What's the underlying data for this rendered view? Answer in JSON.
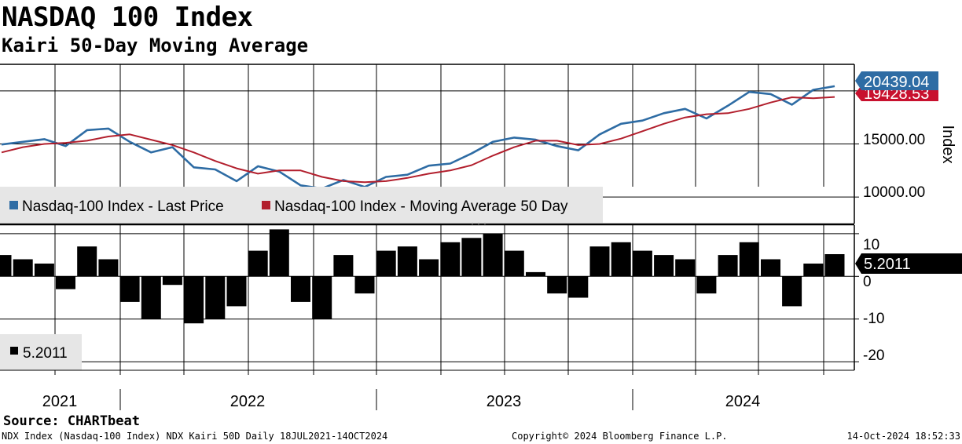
{
  "title": "NASDAQ 100 Index",
  "subtitle": "Kairi 50-Day Moving Average",
  "source": "Source: CHARTbeat",
  "footer": {
    "left": "NDX Index (Nasdaq-100 Index) NDX Kairi 50D  Daily 18JUL2021-14OCT2024",
    "center": "Copyright© 2024 Bloomberg Finance L.P.",
    "right": "14-Oct-2024 18:52:33"
  },
  "colors": {
    "last_price": "#2e6ca4",
    "moving_average": "#b21f2d",
    "kairi": "#000000",
    "flag_last_price": "#2e6ca4",
    "flag_moving_average": "#c8102e",
    "flag_kairi": "#000000"
  },
  "chart_data": [
    {
      "type": "line",
      "ylabel": "Index",
      "ylim": [
        7500,
        22500
      ],
      "yticks": [
        "15000.00",
        "10000.00"
      ],
      "legend": [
        "Nasdaq-100 Index - Last Price",
        "Nasdaq-100 Index - Moving Average 50 Day"
      ],
      "x": [
        "2021-07",
        "2021-08",
        "2021-09",
        "2021-10",
        "2021-11",
        "2021-12",
        "2022-01",
        "2022-02",
        "2022-03",
        "2022-04",
        "2022-05",
        "2022-06",
        "2022-07",
        "2022-08",
        "2022-09",
        "2022-10",
        "2022-11",
        "2022-12",
        "2023-01",
        "2023-02",
        "2023-03",
        "2023-04",
        "2023-05",
        "2023-06",
        "2023-07",
        "2023-08",
        "2023-09",
        "2023-10",
        "2023-11",
        "2023-12",
        "2024-01",
        "2024-02",
        "2024-03",
        "2024-04",
        "2024-05",
        "2024-06",
        "2024-07",
        "2024-08",
        "2024-09",
        "2024-10"
      ],
      "series": [
        {
          "name": "Nasdaq-100 Index - Last Price",
          "values": [
            14950,
            15200,
            15450,
            14800,
            16300,
            16450,
            15200,
            14200,
            14700,
            12800,
            12600,
            11500,
            12900,
            12400,
            11100,
            10800,
            11600,
            10950,
            11900,
            12100,
            12950,
            13150,
            14100,
            15200,
            15600,
            15400,
            14800,
            14400,
            15900,
            16900,
            17200,
            17900,
            18300,
            17400,
            18600,
            19900,
            19700,
            18700,
            20100,
            20439.04
          ]
        },
        {
          "name": "Nasdaq-100 Index - Moving Average 50 Day",
          "values": [
            14200,
            14700,
            15000,
            15100,
            15300,
            15700,
            15900,
            15400,
            14900,
            14200,
            13400,
            12700,
            12200,
            12500,
            12500,
            11900,
            11500,
            11400,
            11500,
            11800,
            12200,
            12500,
            13000,
            13900,
            14700,
            15300,
            15300,
            14900,
            15000,
            15500,
            16200,
            16900,
            17500,
            17800,
            17900,
            18300,
            18900,
            19400,
            19300,
            19428.53
          ]
        }
      ],
      "last_values": [
        "20439.04",
        "19428.53"
      ]
    },
    {
      "type": "bar",
      "ylim": [
        -22,
        12
      ],
      "yticks": [
        "10",
        "0",
        "-10",
        "-20"
      ],
      "legend": [
        "5.2011"
      ],
      "x": [
        "2021-07",
        "2021-08",
        "2021-09",
        "2021-10",
        "2021-11",
        "2021-12",
        "2022-01",
        "2022-02",
        "2022-03",
        "2022-04",
        "2022-05",
        "2022-06",
        "2022-07",
        "2022-08",
        "2022-09",
        "2022-10",
        "2022-11",
        "2022-12",
        "2023-01",
        "2023-02",
        "2023-03",
        "2023-04",
        "2023-05",
        "2023-06",
        "2023-07",
        "2023-08",
        "2023-09",
        "2023-10",
        "2023-11",
        "2023-12",
        "2024-01",
        "2024-02",
        "2024-03",
        "2024-04",
        "2024-05",
        "2024-06",
        "2024-07",
        "2024-08",
        "2024-09",
        "2024-10"
      ],
      "values": [
        5,
        4,
        3,
        -3,
        7,
        4,
        -6,
        -10,
        -2,
        -11,
        -10,
        -7,
        6,
        11,
        -6,
        -10,
        5,
        -4,
        6,
        7,
        4,
        8,
        9,
        10,
        6,
        1,
        -4,
        -5,
        7,
        8,
        6,
        5,
        4,
        -4,
        5,
        8,
        4,
        -7,
        3,
        5.2011
      ],
      "last_value": "5.2011"
    }
  ],
  "x_axis": {
    "years": [
      "2021",
      "2022",
      "2023",
      "2024"
    ]
  }
}
